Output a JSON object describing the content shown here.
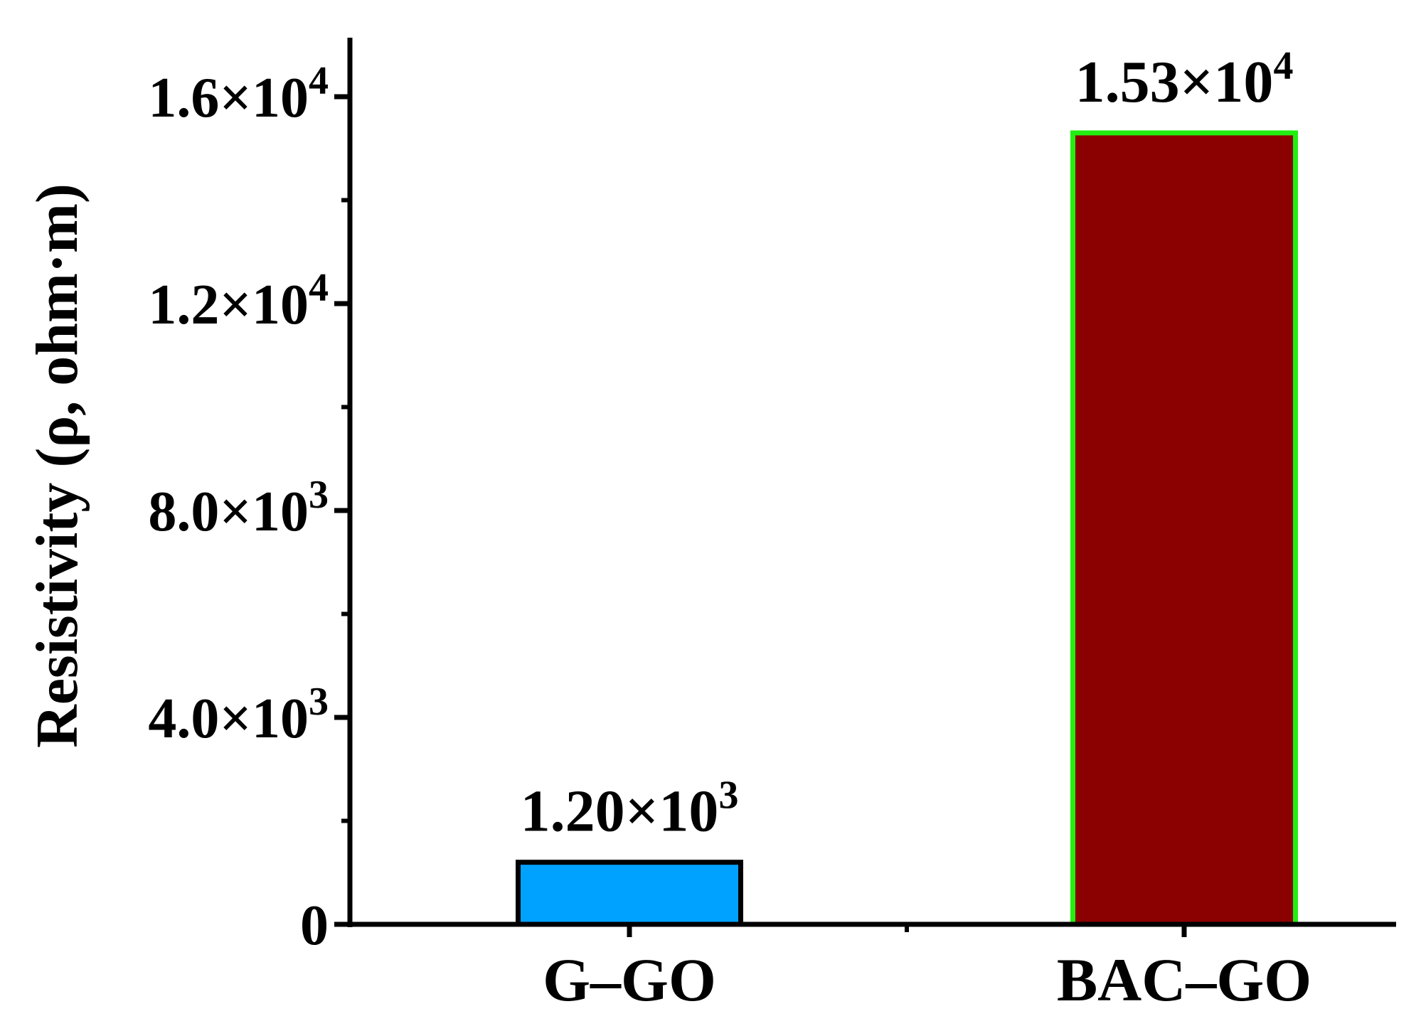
{
  "chart_data": {
    "type": "bar",
    "categories": [
      "G–GO",
      "BAC–GO"
    ],
    "values": [
      1200,
      15300
    ],
    "data_labels": [
      {
        "mantissa": "1.20",
        "exponent": "3"
      },
      {
        "mantissa": "1.53",
        "exponent": "4"
      }
    ],
    "bar_fill_colors": [
      "#00a2ff",
      "#8b0000"
    ],
    "bar_border_colors": [
      "#000000",
      "#22ee11"
    ],
    "xlabel": "",
    "ylabel": "Resistivity (ρ, ohm·m)",
    "ylim": [
      0,
      17000
    ],
    "major_ticks": [
      {
        "value": 0,
        "mantissa": "0",
        "exponent": ""
      },
      {
        "value": 4000,
        "mantissa": "4.0",
        "exponent": "3"
      },
      {
        "value": 8000,
        "mantissa": "8.0",
        "exponent": "3"
      },
      {
        "value": 12000,
        "mantissa": "1.2",
        "exponent": "4"
      },
      {
        "value": 16000,
        "mantissa": "1.6",
        "exponent": "4"
      }
    ],
    "minor_ticks": [
      2000,
      6000,
      10000,
      14000
    ],
    "grid": false,
    "legend": "none"
  }
}
